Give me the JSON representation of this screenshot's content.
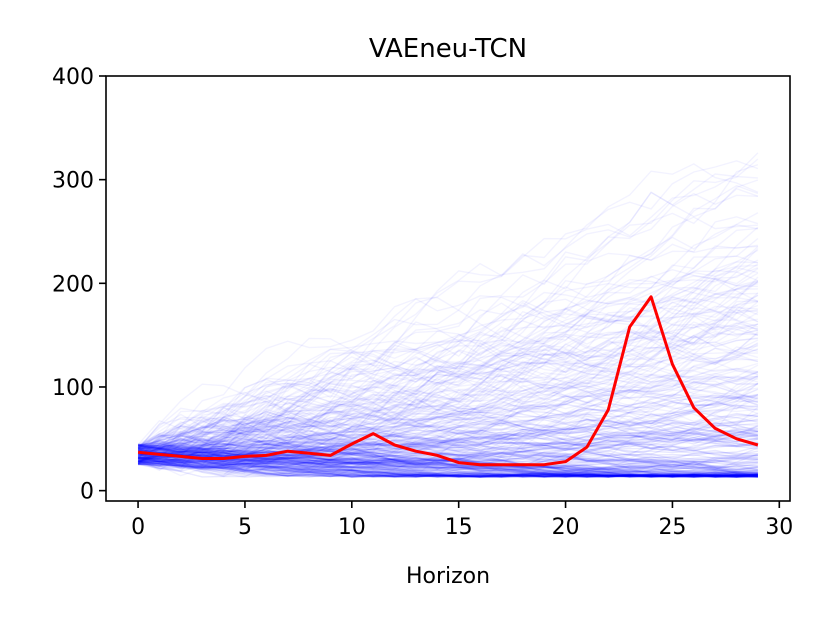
{
  "chart_data": {
    "type": "line",
    "title": "VAEneu-TCN",
    "xlabel": "Horizon",
    "ylabel": "",
    "xlim": [
      -1.5,
      30.5
    ],
    "ylim": [
      -10,
      400
    ],
    "xticks": [
      0,
      5,
      10,
      15,
      20,
      25,
      30
    ],
    "yticks": [
      0,
      100,
      200,
      300,
      400
    ],
    "grid": false,
    "colors": {
      "samples": "#0000ff",
      "actual": "#ff0000"
    },
    "x": [
      0,
      1,
      2,
      3,
      4,
      5,
      6,
      7,
      8,
      9,
      10,
      11,
      12,
      13,
      14,
      15,
      16,
      17,
      18,
      19,
      20,
      21,
      22,
      23,
      24,
      25,
      26,
      27,
      28,
      29
    ],
    "series": [
      {
        "name": "",
        "values": [
          37,
          35,
          33,
          31,
          31,
          33,
          34,
          38,
          36,
          34,
          45,
          55,
          44,
          38,
          34,
          27,
          25,
          25,
          25,
          25,
          28,
          42,
          78,
          158,
          187,
          122,
          80,
          60,
          50,
          44
        ]
      }
    ],
    "samples": {
      "count": 300,
      "start_min": 25,
      "start_max": 45,
      "floor": 13,
      "envelope_upper_max": 355
    }
  }
}
